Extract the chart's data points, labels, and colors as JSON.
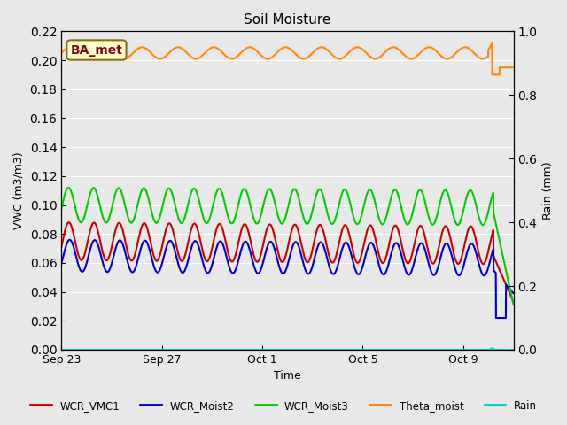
{
  "title": "Soil Moisture",
  "xlabel": "Time",
  "ylabel_left": "VWC (m3/m3)",
  "ylabel_right": "Rain (mm)",
  "bg_color": "#e8e8e8",
  "annotation_text": "BA_met",
  "annotation_bg": "#ffffcc",
  "annotation_border": "#8b6914",
  "annotation_text_color": "#8b0000",
  "ylim_left": [
    0.0,
    0.22
  ],
  "ylim_right": [
    0.0,
    1.0
  ],
  "xlim_start": 0,
  "xlim_end": 18,
  "xtick_positions": [
    0,
    4,
    8,
    12,
    16
  ],
  "xtick_labels": [
    "Sep 23",
    "Sep 27",
    "Oct 1",
    "Oct 5",
    "Oct 9"
  ],
  "yticks_left": [
    0.0,
    0.02,
    0.04,
    0.06,
    0.08,
    0.1,
    0.12,
    0.14,
    0.16,
    0.18,
    0.2,
    0.22
  ],
  "yticks_right": [
    0.0,
    0.2,
    0.4,
    0.6,
    0.8,
    1.0
  ],
  "colors": {
    "WCR_VMC1": "#cc0000",
    "WCR_Moist2": "#0000cc",
    "WCR_Moist3": "#00cc00",
    "Theta_moist": "#ff8800",
    "Rain": "#00cccc"
  },
  "total_days": 18
}
